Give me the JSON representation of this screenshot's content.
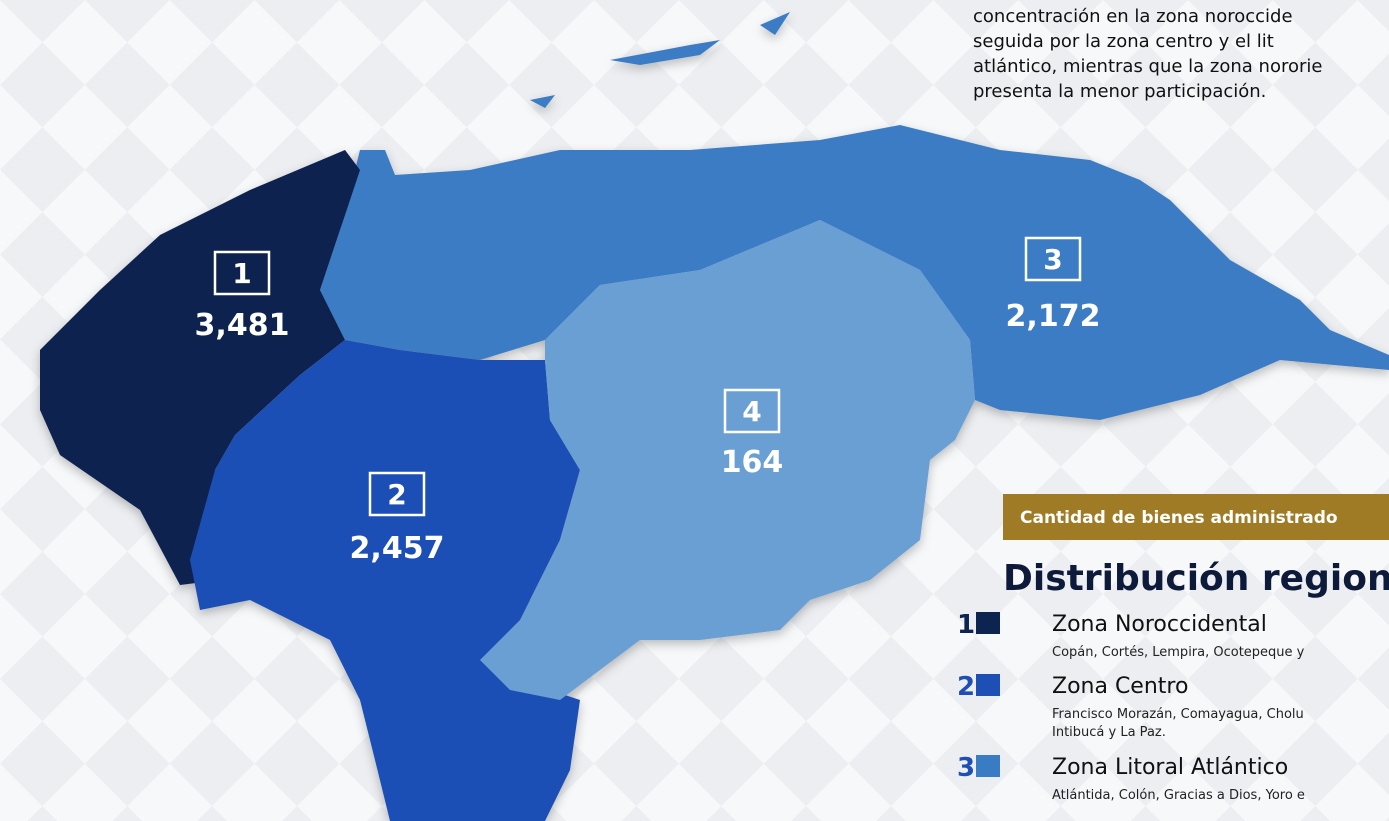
{
  "intro": {
    "lines": [
      "concentración en la zona noroccide",
      "seguida por la zona centro y el lit",
      "atlántico, mientras que la zona nororie",
      "presenta la menor participación."
    ]
  },
  "map": {
    "regions": [
      {
        "number": "1",
        "value": "3,481"
      },
      {
        "number": "2",
        "value": "2,457"
      },
      {
        "number": "3",
        "value": "2,172"
      },
      {
        "number": "4",
        "value": "164"
      }
    ]
  },
  "panel": {
    "banner": "Cantidad de bienes administrado",
    "heading": "Distribución region",
    "legend": [
      {
        "number": "1",
        "name": "Zona Noroccidental",
        "description": [
          "Copán, Cortés, Lempira, Ocotepeque y"
        ]
      },
      {
        "number": "2",
        "name": "Zona Centro",
        "description": [
          "Francisco Morazán, Comayagua, Cholu",
          "Intibucá y La Paz."
        ]
      },
      {
        "number": "3",
        "name": "Zona Litoral Atlántico",
        "description": [
          "Atlántida, Colón, Gracias a Dios, Yoro e"
        ]
      }
    ]
  }
}
